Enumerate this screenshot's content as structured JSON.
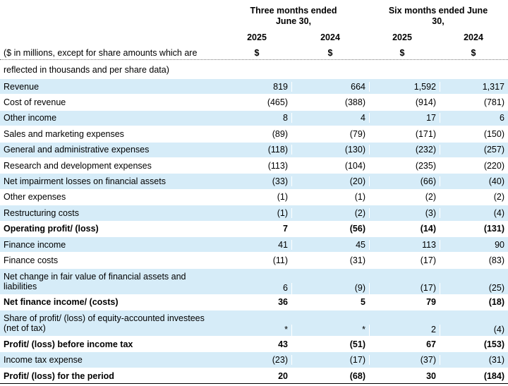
{
  "header": {
    "group1": "Three months ended June 30,",
    "group2": "Six months ended June 30,",
    "years": [
      "2025",
      "2024",
      "2025",
      "2024"
    ],
    "currency": [
      "$",
      "$",
      "$",
      "$"
    ],
    "desc_line1": "($ in millions, except for share amounts which are",
    "desc_line2": "reflected in thousands and per share data)"
  },
  "rows": [
    {
      "label": "Revenue",
      "v": [
        "819",
        "664",
        "1,592",
        "1,317"
      ]
    },
    {
      "label": "Cost of revenue",
      "v": [
        "(465)",
        "(388)",
        "(914)",
        "(781)"
      ]
    },
    {
      "label": "Other income",
      "v": [
        "8",
        "4",
        "17",
        "6"
      ]
    },
    {
      "label": "Sales and marketing expenses",
      "v": [
        "(89)",
        "(79)",
        "(171)",
        "(150)"
      ]
    },
    {
      "label": "General and administrative expenses",
      "v": [
        "(118)",
        "(130)",
        "(232)",
        "(257)"
      ]
    },
    {
      "label": "Research and development expenses",
      "v": [
        "(113)",
        "(104)",
        "(235)",
        "(220)"
      ]
    },
    {
      "label": "Net impairment losses on financial assets",
      "v": [
        "(33)",
        "(20)",
        "(66)",
        "(40)"
      ]
    },
    {
      "label": "Other expenses",
      "v": [
        "(1)",
        "(1)",
        "(2)",
        "(2)"
      ]
    },
    {
      "label": "Restructuring costs",
      "v": [
        "(1)",
        "(2)",
        "(3)",
        "(4)"
      ]
    },
    {
      "label": "Operating profit/ (loss)",
      "v": [
        "7",
        "(56)",
        "(14)",
        "(131)"
      ]
    },
    {
      "label": "Finance income",
      "v": [
        "41",
        "45",
        "113",
        "90"
      ]
    },
    {
      "label": "Finance costs",
      "v": [
        "(11)",
        "(31)",
        "(17)",
        "(83)"
      ]
    },
    {
      "label": "Net change in fair value of financial assets and liabilities",
      "v": [
        "6",
        "(9)",
        "(17)",
        "(25)"
      ]
    },
    {
      "label": "Net finance income/ (costs)",
      "v": [
        "36",
        "5",
        "79",
        "(18)"
      ]
    },
    {
      "label": "Share of profit/ (loss) of equity-accounted investees (net of tax)",
      "v": [
        "*",
        "*",
        "2",
        "(4)"
      ]
    },
    {
      "label": "Profit/ (loss) before income tax",
      "v": [
        "43",
        "(51)",
        "67",
        "(153)"
      ]
    },
    {
      "label": "Income tax expense",
      "v": [
        "(23)",
        "(17)",
        "(37)",
        "(31)"
      ]
    },
    {
      "label": "Profit/ (loss) for the period",
      "v": [
        "20",
        "(68)",
        "30",
        "(184)"
      ]
    }
  ]
}
